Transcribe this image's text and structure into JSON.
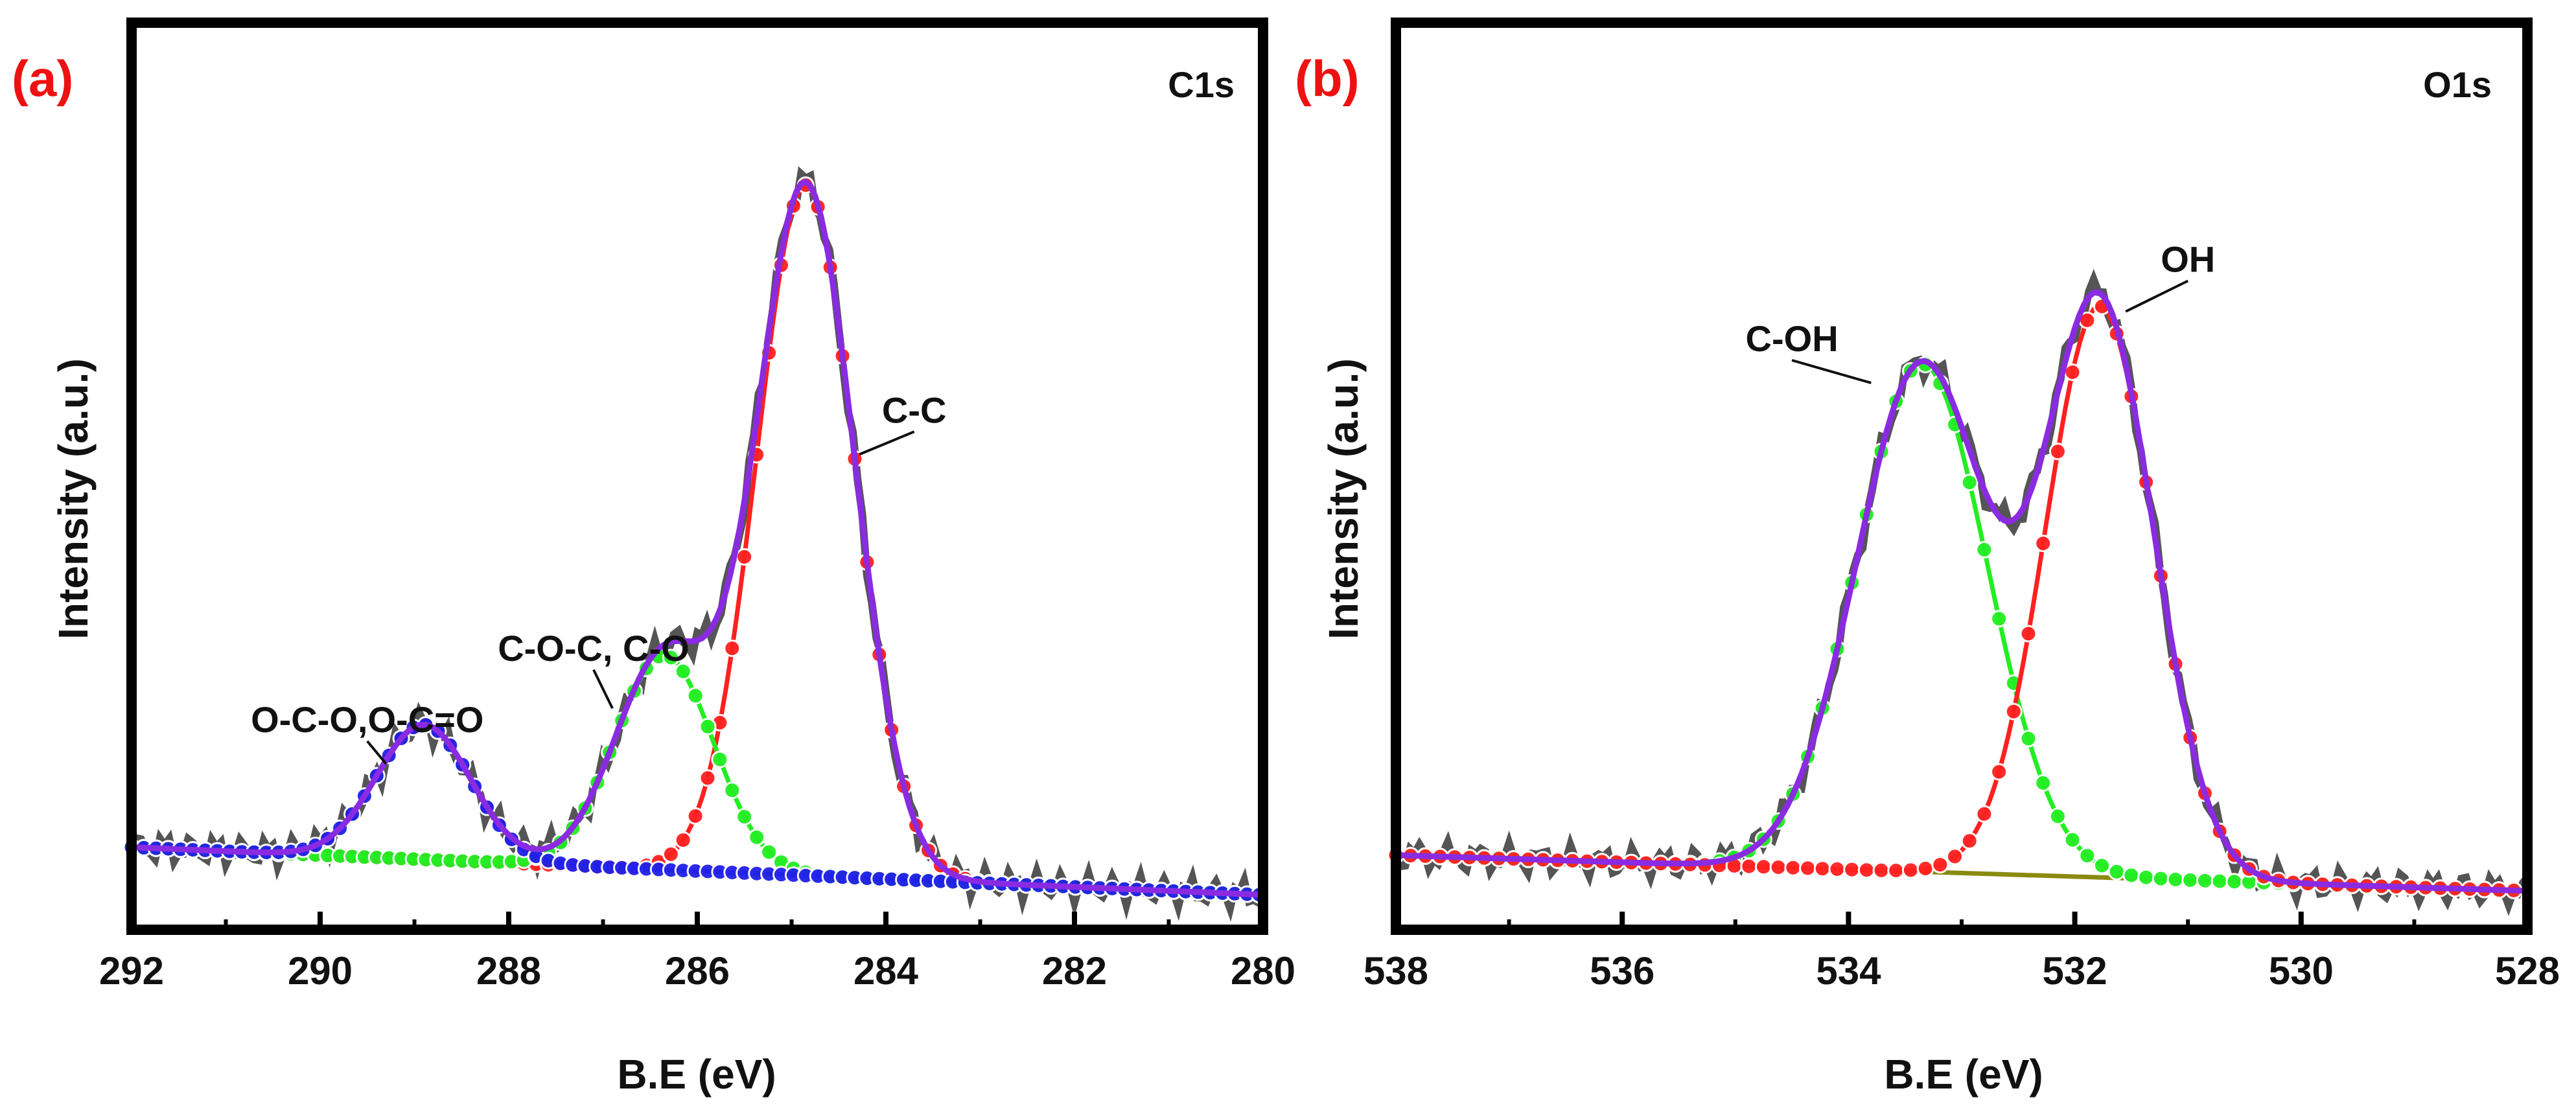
{
  "chart_data": [
    {
      "panel": "(a)",
      "type": "line",
      "subtype": "xps-peak-fit",
      "title": "C1s",
      "xlabel": "B.E (eV)",
      "ylabel": "Intensity (a.u.)",
      "xlim": [
        292,
        280
      ],
      "x_reversed": true,
      "ylim": [
        0,
        1
      ],
      "xticks": [
        292,
        290,
        288,
        286,
        284,
        282,
        280
      ],
      "grid": false,
      "baseline": {
        "y_start": 0.055,
        "y_end": -0.005
      },
      "peaks": [
        {
          "label": "C-C",
          "center": 284.85,
          "height": 0.87,
          "sigma": 0.52,
          "color": "#ff2020"
        },
        {
          "label": "C-O-C, C-O",
          "center": 286.35,
          "height": 0.27,
          "sigma": 0.52,
          "color": "#22ee22"
        },
        {
          "label": "O-C-O,O-C=O",
          "center": 288.9,
          "height": 0.17,
          "sigma": 0.5,
          "color": "#2020e8"
        }
      ],
      "series": [
        {
          "name": "raw data",
          "color": "#555555"
        },
        {
          "name": "fitted envelope",
          "color": "#8a2be2"
        },
        {
          "name": "background",
          "color": "#8a8a10"
        }
      ],
      "annotations": [
        {
          "text": "C-C",
          "x": 283.7,
          "y": 0.59,
          "arrow_to": [
            284.28,
            0.55
          ]
        },
        {
          "text": "C-O-C, C-O",
          "x": 287.1,
          "y": 0.29,
          "arrow_to": [
            286.9,
            0.23
          ]
        },
        {
          "text": "O-C-O,O-C=O",
          "x": 289.5,
          "y": 0.2,
          "arrow_to": [
            289.3,
            0.16
          ]
        }
      ]
    },
    {
      "panel": "(b)",
      "type": "line",
      "subtype": "xps-peak-fit",
      "title": "O1s",
      "xlabel": "B.E (eV)",
      "ylabel": "Intensity (a.u.)",
      "xlim": [
        538,
        528
      ],
      "x_reversed": true,
      "ylim": [
        0,
        1
      ],
      "xticks": [
        538,
        536,
        534,
        532,
        530,
        528
      ],
      "grid": false,
      "baseline": {
        "y_start": 0.045,
        "y_end": 0.0
      },
      "peaks": [
        {
          "label": "C-OH",
          "center": 533.35,
          "height": 0.64,
          "sigma": 0.58,
          "color": "#22ee22"
        },
        {
          "label": "OH",
          "center": 531.78,
          "height": 0.72,
          "sigma": 0.48,
          "color": "#ff2020"
        }
      ],
      "series": [
        {
          "name": "raw data",
          "color": "#555555"
        },
        {
          "name": "fitted envelope",
          "color": "#8a2be2"
        },
        {
          "name": "background",
          "color": "#8a8a10"
        }
      ],
      "annotations": [
        {
          "text": "C-OH",
          "x": 534.5,
          "y": 0.68,
          "arrow_to": [
            533.8,
            0.64
          ]
        },
        {
          "text": "OH",
          "x": 531.0,
          "y": 0.78,
          "arrow_to": [
            531.55,
            0.73
          ]
        }
      ]
    }
  ]
}
